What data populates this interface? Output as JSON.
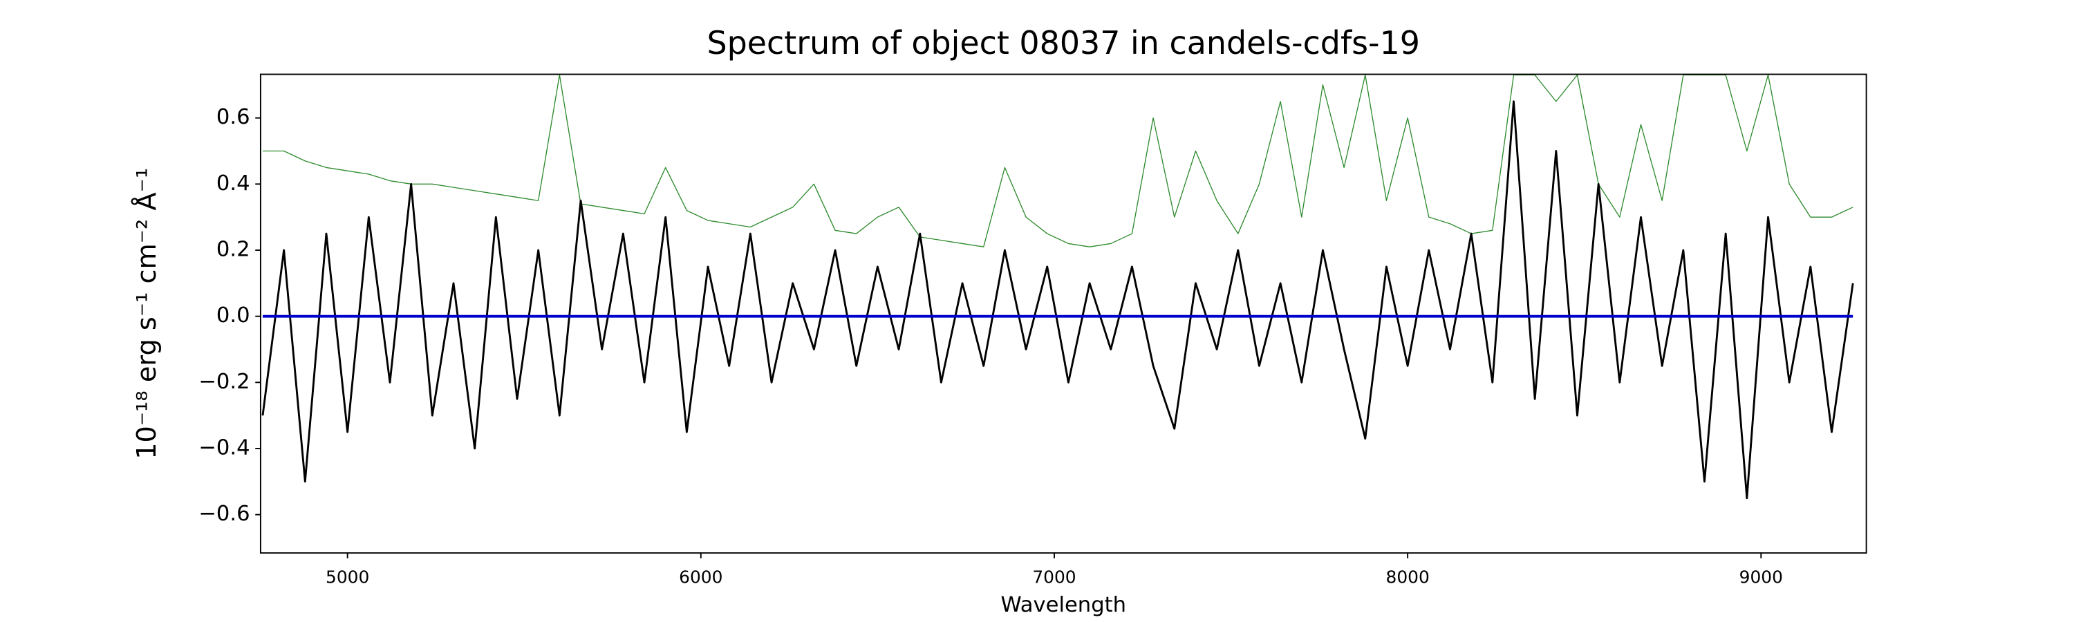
{
  "chart_data": {
    "type": "line",
    "title": "Spectrum of object 08037 in candels-cdfs-19",
    "x_label": "Wavelength",
    "y_label": "10⁻¹⁸ erg s⁻¹ cm⁻² Å⁻¹",
    "x": [
      4760,
      4820,
      4880,
      4940,
      5000,
      5060,
      5120,
      5180,
      5240,
      5300,
      5360,
      5420,
      5480,
      5540,
      5600,
      5660,
      5720,
      5780,
      5840,
      5900,
      5960,
      6020,
      6080,
      6140,
      6200,
      6260,
      6320,
      6380,
      6440,
      6500,
      6560,
      6620,
      6680,
      6740,
      6800,
      6860,
      6920,
      6980,
      7040,
      7100,
      7160,
      7220,
      7280,
      7340,
      7400,
      7460,
      7520,
      7580,
      7640,
      7700,
      7760,
      7820,
      7880,
      7940,
      8000,
      8060,
      8120,
      8180,
      8240,
      8300,
      8360,
      8420,
      8480,
      8540,
      8600,
      8660,
      8720,
      8780,
      8840,
      8900,
      8960,
      9020,
      9080,
      9140,
      9200,
      9260
    ],
    "series": [
      {
        "color": "#2e8b2e",
        "width": 0.7,
        "values": [
          0.5,
          0.5,
          0.47,
          0.45,
          0.44,
          0.43,
          0.41,
          0.4,
          0.4,
          0.39,
          0.38,
          0.37,
          0.36,
          0.35,
          0.73,
          0.34,
          0.33,
          0.32,
          0.31,
          0.45,
          0.32,
          0.29,
          0.28,
          0.27,
          0.3,
          0.33,
          0.4,
          0.26,
          0.25,
          0.3,
          0.33,
          0.24,
          0.23,
          0.22,
          0.21,
          0.45,
          0.3,
          0.25,
          0.22,
          0.21,
          0.22,
          0.25,
          0.6,
          0.3,
          0.5,
          0.35,
          0.25,
          0.4,
          0.65,
          0.3,
          0.7,
          0.45,
          0.73,
          0.35,
          0.6,
          0.3,
          0.28,
          0.25,
          0.26,
          0.73,
          0.73,
          0.65,
          0.73,
          0.4,
          0.3,
          0.58,
          0.35,
          0.73,
          0.73,
          0.73,
          0.5,
          0.73,
          0.4,
          0.3,
          0.3,
          0.33
        ]
      },
      {
        "color": "#000000",
        "width": 1.5,
        "values": [
          -0.3,
          0.2,
          -0.5,
          0.25,
          -0.35,
          0.3,
          -0.2,
          0.4,
          -0.3,
          0.1,
          -0.4,
          0.3,
          -0.25,
          0.2,
          -0.3,
          0.35,
          -0.1,
          0.25,
          -0.2,
          0.3,
          -0.35,
          0.15,
          -0.15,
          0.25,
          -0.2,
          0.1,
          -0.1,
          0.2,
          -0.15,
          0.15,
          -0.1,
          0.25,
          -0.2,
          0.1,
          -0.15,
          0.2,
          -0.1,
          0.15,
          -0.2,
          0.1,
          -0.1,
          0.15,
          -0.15,
          -0.34,
          0.1,
          -0.1,
          0.2,
          -0.15,
          0.1,
          -0.2,
          0.2,
          -0.1,
          -0.37,
          0.15,
          -0.15,
          0.2,
          -0.1,
          0.25,
          -0.2,
          0.65,
          -0.25,
          0.5,
          -0.3,
          0.4,
          -0.2,
          0.3,
          -0.15,
          0.2,
          -0.5,
          0.25,
          -0.55,
          0.3,
          -0.2,
          0.15,
          -0.35,
          0.1
        ]
      },
      {
        "color": "#0000cc",
        "width": 2,
        "values": [
          0,
          0,
          0,
          0,
          0,
          0,
          0,
          0,
          0,
          0,
          0,
          0,
          0,
          0,
          0,
          0,
          0,
          0,
          0,
          0,
          0,
          0,
          0,
          0,
          0,
          0,
          0,
          0,
          0,
          0,
          0,
          0,
          0,
          0,
          0,
          0,
          0,
          0,
          0,
          0,
          0,
          0,
          0,
          0,
          0,
          0,
          0,
          0,
          0,
          0,
          0,
          0,
          0,
          0,
          0,
          0,
          0,
          0,
          0,
          0,
          0,
          0,
          0,
          0,
          0,
          0,
          0,
          0,
          0,
          0,
          0,
          0,
          0,
          0,
          0,
          0
        ]
      }
    ],
    "xlim": [
      4754,
      9298
    ],
    "xticks": [
      5000,
      6000,
      7000,
      8000,
      9000
    ],
    "ylim": [
      -0.716,
      0.732
    ],
    "yticks": [
      {
        "value": -0.6,
        "label": "−0.6"
      },
      {
        "value": -0.4,
        "label": "−0.4"
      },
      {
        "value": -0.2,
        "label": "−0.2"
      },
      {
        "value": 0,
        "label": "0.0"
      },
      0.2,
      0.4,
      0.6
    ],
    "grid": false
  }
}
